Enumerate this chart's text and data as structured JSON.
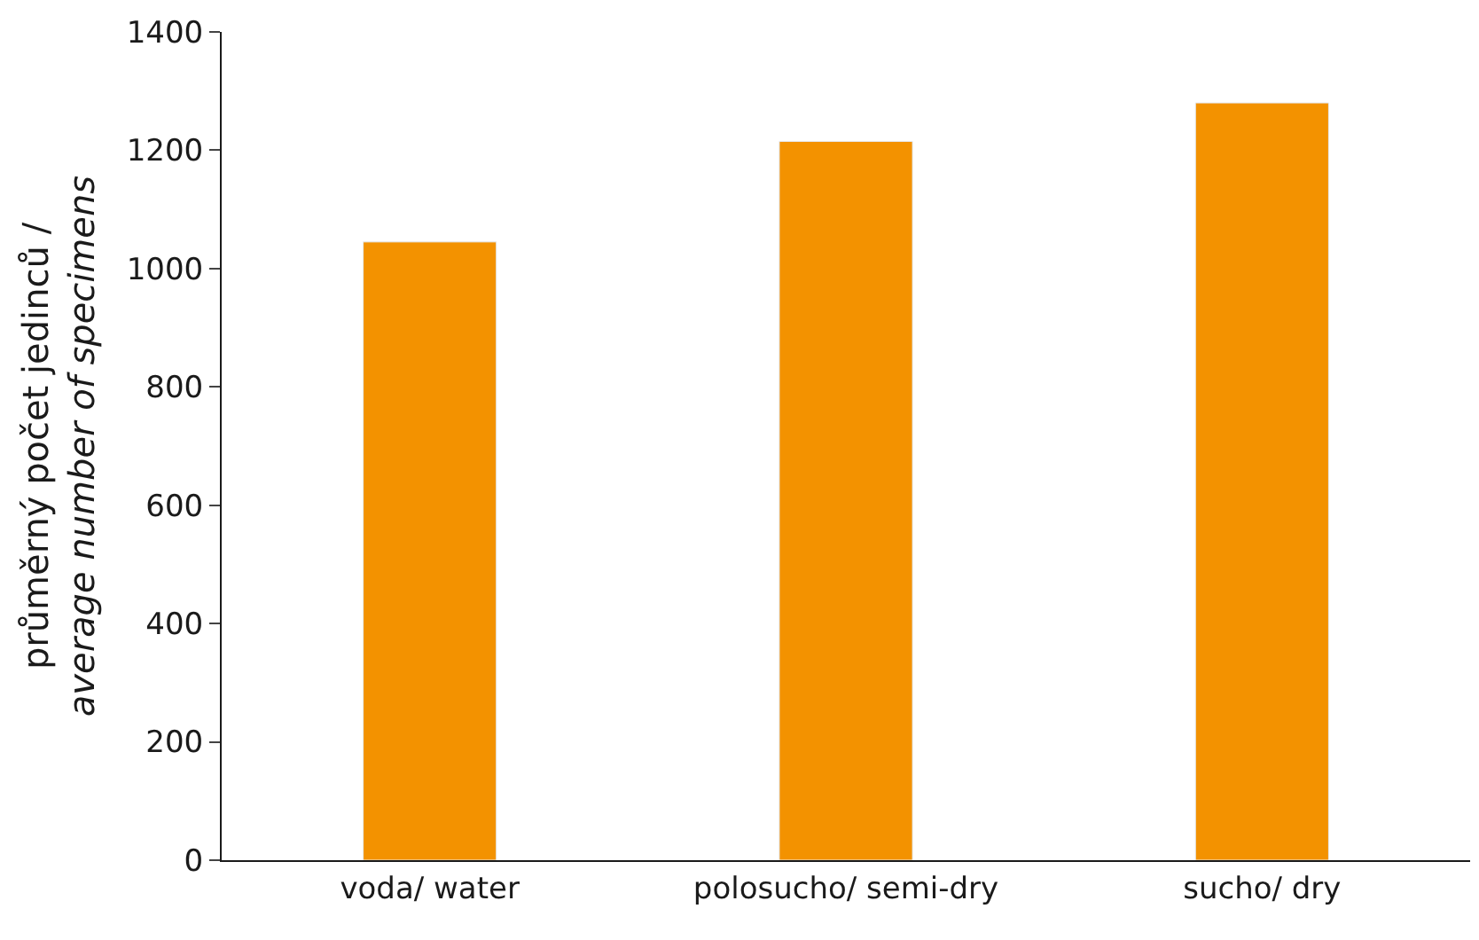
{
  "chart_data": {
    "type": "bar",
    "ylabel": "průměrný počet jedinců /\naverage number of specimens",
    "categories": [
      "voda/ water",
      "polosucho/ semi-dry",
      "sucho/ dry"
    ],
    "values": [
      1045,
      1215,
      1280
    ],
    "color": "#f39200",
    "ylim": [
      0,
      1400
    ],
    "yticks": [
      0,
      200,
      400,
      600,
      800,
      1000,
      1200,
      1400
    ]
  }
}
